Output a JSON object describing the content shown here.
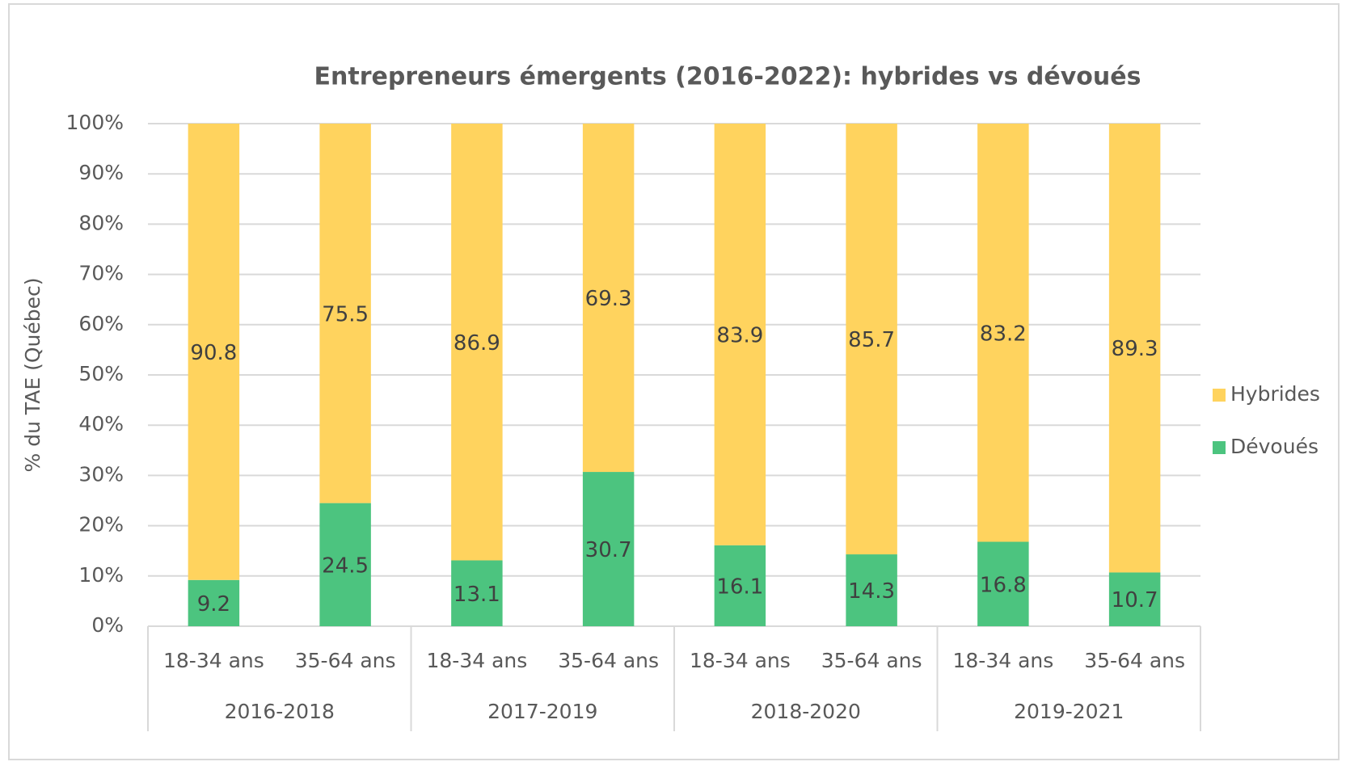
{
  "chart_data": {
    "type": "bar",
    "stacked": true,
    "title": "Entrepreneurs émergents (2016-2022): hybrides vs dévoués",
    "y_label": "% du TAE (Québec)",
    "groups": [
      "2016-2018",
      "2017-2019",
      "2018-2020",
      "2019-2021"
    ],
    "categories": [
      "18-34 ans",
      "35-64 ans",
      "18-34 ans",
      "35-64 ans",
      "18-34 ans",
      "35-64 ans",
      "18-34 ans",
      "35-64 ans"
    ],
    "series": [
      {
        "name": "Dévoués",
        "color": "#4cc47f",
        "values": [
          9.2,
          24.5,
          13.1,
          30.7,
          16.1,
          14.3,
          16.8,
          10.7
        ]
      },
      {
        "name": "Hybrides",
        "color": "#ffd35e",
        "values": [
          90.8,
          75.5,
          86.9,
          69.3,
          83.9,
          85.7,
          83.2,
          89.3
        ]
      }
    ],
    "ylim": [
      0,
      100
    ],
    "yticks": [
      {
        "value": 0,
        "label": "0%"
      },
      {
        "value": 10,
        "label": "10%"
      },
      {
        "value": 20,
        "label": "20%"
      },
      {
        "value": 30,
        "label": "30%"
      },
      {
        "value": 40,
        "label": "40%"
      },
      {
        "value": 50,
        "label": "50%"
      },
      {
        "value": 60,
        "label": "60%"
      },
      {
        "value": 70,
        "label": "70%"
      },
      {
        "value": 80,
        "label": "80%"
      },
      {
        "value": 90,
        "label": "90%"
      },
      {
        "value": 100,
        "label": "100%"
      }
    ],
    "grid": true,
    "legend": "right"
  }
}
